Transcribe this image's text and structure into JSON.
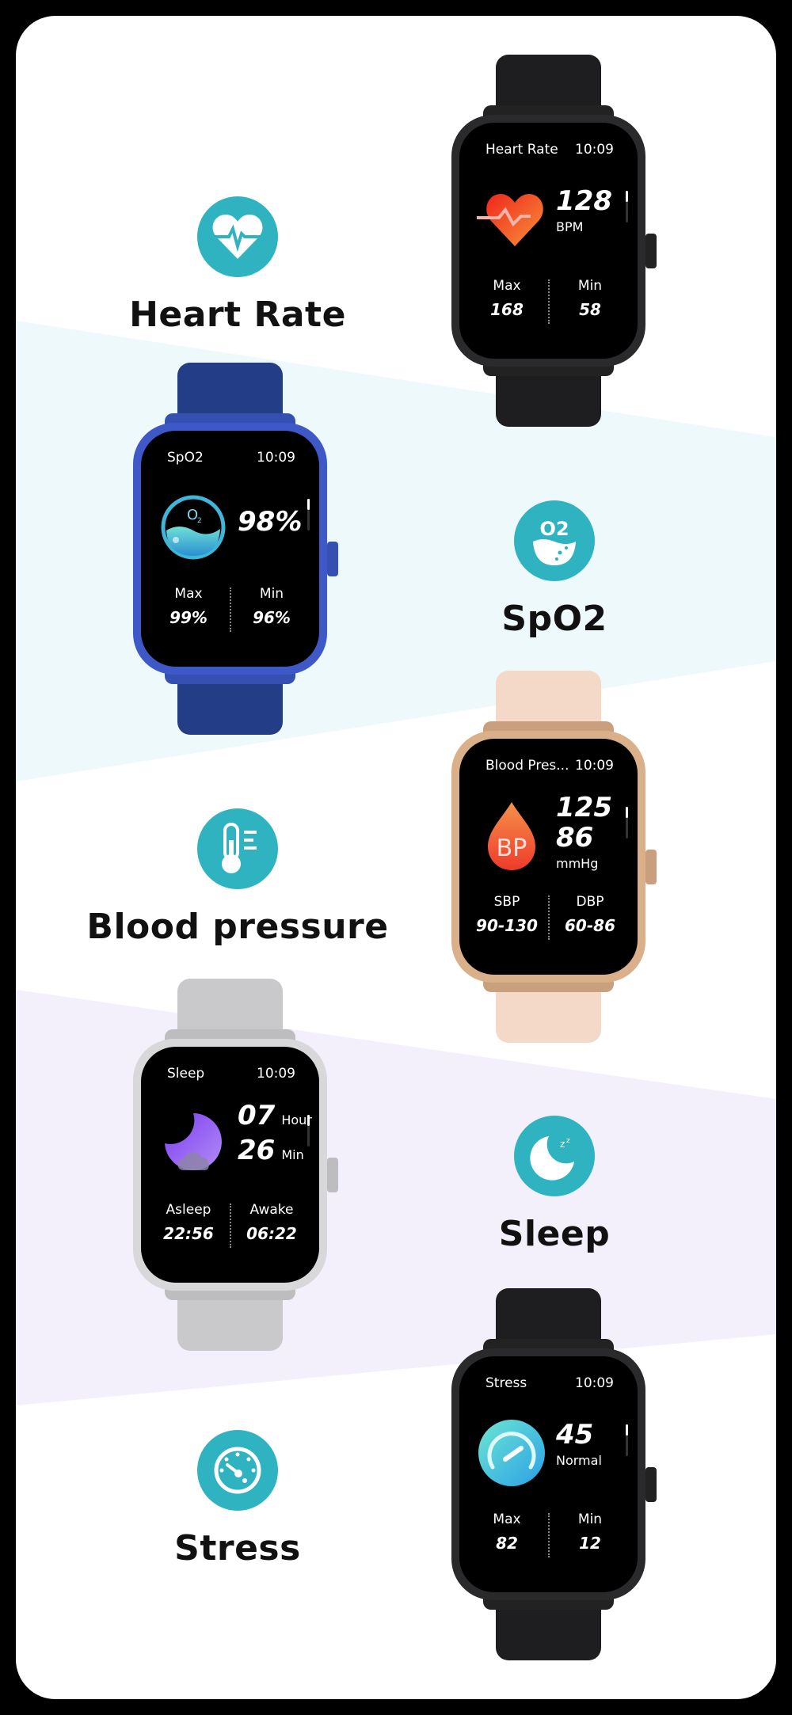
{
  "theme": {
    "accent": "#30b3c1",
    "band_cyan": "#eef9fb",
    "band_lavender": "#f3f0fb"
  },
  "features": [
    {
      "title": "Heart Rate",
      "icon": "heart-pulse-icon"
    },
    {
      "title": "SpO2",
      "icon": "oxygen-drop-icon"
    },
    {
      "title": "Blood pressure",
      "icon": "thermometer-icon"
    },
    {
      "title": "Sleep",
      "icon": "moon-zzz-icon"
    },
    {
      "title": "Stress",
      "icon": "gauge-icon"
    }
  ],
  "watches": [
    {
      "id": "heart-rate",
      "case_color": "black",
      "screen": {
        "title": "Heart Rate",
        "time": "10:09",
        "icon": "heart-icon",
        "lines": [
          {
            "value": "128",
            "unit": ""
          }
        ],
        "caption": "BPM",
        "stats": [
          {
            "label": "Max",
            "value": "168"
          },
          {
            "label": "Min",
            "value": "58"
          }
        ]
      }
    },
    {
      "id": "spo2",
      "case_color": "blue",
      "screen": {
        "title": "SpO2",
        "time": "10:09",
        "icon": "oxygen-gauge-icon",
        "lines": [
          {
            "value": "98%",
            "unit": ""
          }
        ],
        "caption": "",
        "stats": [
          {
            "label": "Max",
            "value": "99%"
          },
          {
            "label": "Min",
            "value": "96%"
          }
        ]
      }
    },
    {
      "id": "blood-pressure",
      "case_color": "rose-gold",
      "screen": {
        "title": "Blood Pres...",
        "time": "10:09",
        "icon": "blood-drop-icon",
        "icon_text": "BP",
        "lines": [
          {
            "value": "125",
            "unit": ""
          },
          {
            "value": "86",
            "unit": ""
          }
        ],
        "caption": "mmHg",
        "stats": [
          {
            "label": "SBP",
            "value": "90-130"
          },
          {
            "label": "DBP",
            "value": "60-86"
          }
        ]
      }
    },
    {
      "id": "sleep",
      "case_color": "silver",
      "screen": {
        "title": "Sleep",
        "time": "10:09",
        "icon": "moon-cloud-icon",
        "lines": [
          {
            "value": "07",
            "unit": "Hour"
          },
          {
            "value": "26",
            "unit": "Min"
          }
        ],
        "caption": "",
        "stats": [
          {
            "label": "Asleep",
            "value": "22:56"
          },
          {
            "label": "Awake",
            "value": "06:22"
          }
        ]
      }
    },
    {
      "id": "stress",
      "case_color": "black",
      "screen": {
        "title": "Stress",
        "time": "10:09",
        "icon": "speedometer-icon",
        "lines": [
          {
            "value": "45",
            "unit": ""
          }
        ],
        "caption": "Normal",
        "stats": [
          {
            "label": "Max",
            "value": "82"
          },
          {
            "label": "Min",
            "value": "12"
          }
        ]
      }
    }
  ]
}
